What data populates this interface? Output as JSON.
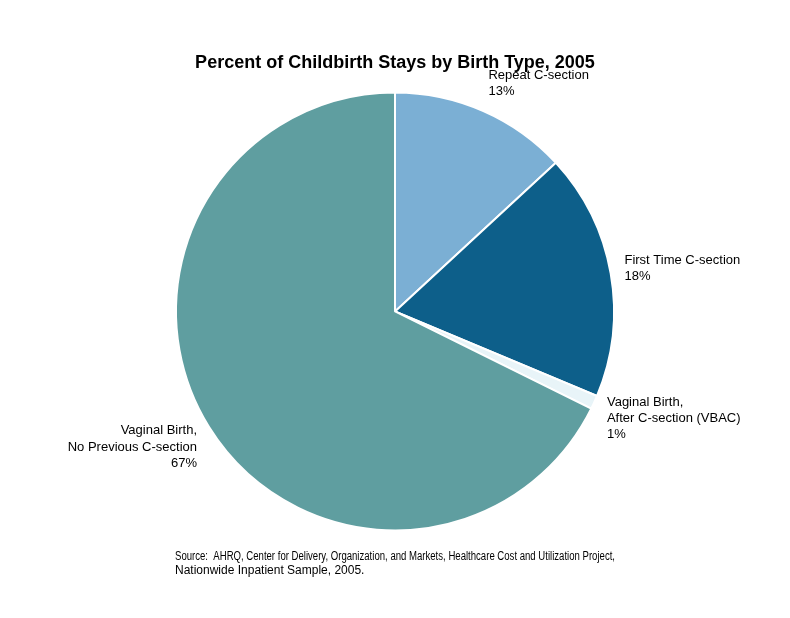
{
  "chart_data": {
    "type": "pie",
    "title": "Percent of Childbirth Stays by Birth Type, 2005",
    "categories": [
      "Repeat C-section",
      "First Time C-section",
      "Vaginal Birth,\nAfter C-section (VBAC)",
      "Vaginal Birth,\nNo Previous C-section"
    ],
    "values": [
      13,
      18,
      1,
      67
    ],
    "value_labels": [
      "13%",
      "18%",
      "1%",
      "67%"
    ],
    "data_labels": true,
    "colors": [
      "#7bafd4",
      "#0d5f8a",
      "#e8f4f8",
      "#5f9ea0"
    ],
    "source": "Source:  AHRQ, Center for Delivery, Organization, and Markets, Healthcare Cost and Utilization Project,\nNationwide Inpatient Sample, 2005.",
    "legend": false
  }
}
